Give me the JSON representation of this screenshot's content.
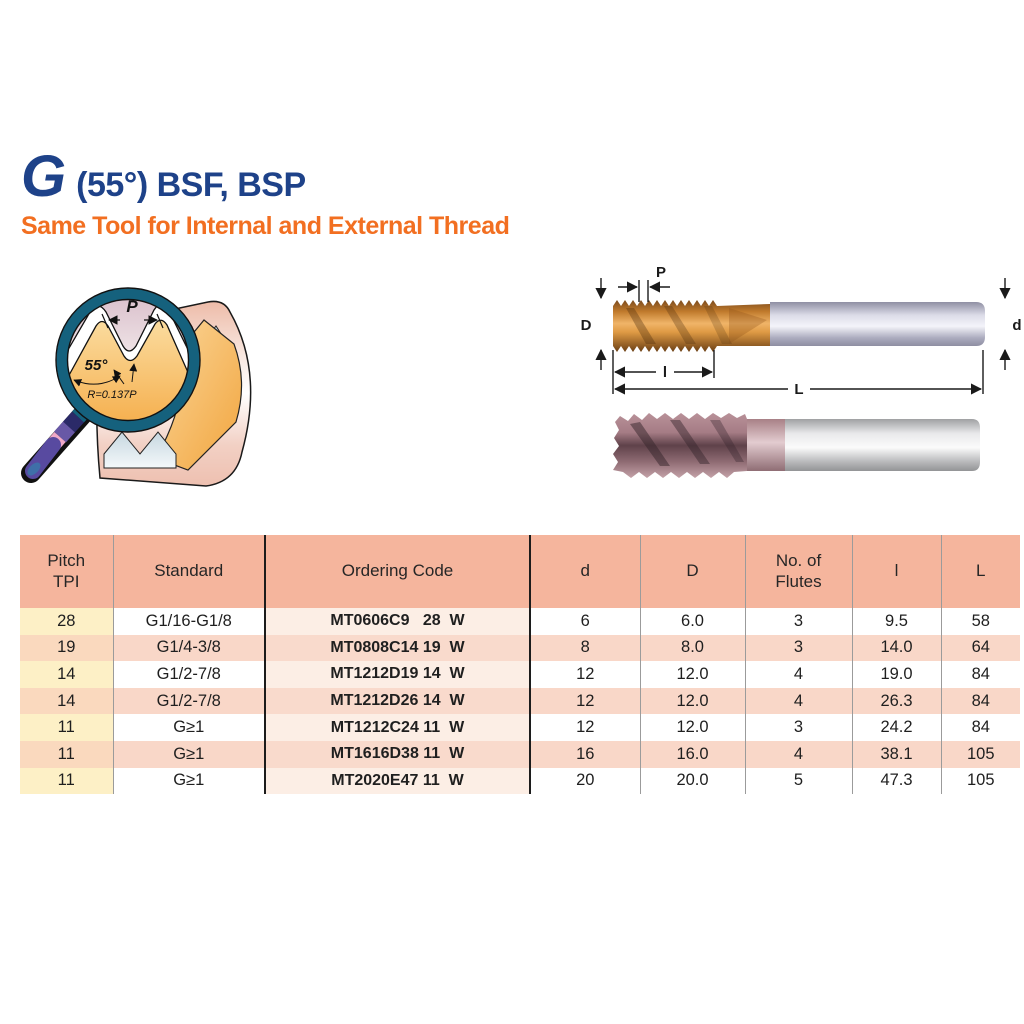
{
  "header": {
    "title_g": "G",
    "title_rest": "(55°) BSF, BSP",
    "subtitle": "Same Tool for Internal and External Thread"
  },
  "magnifier": {
    "pitch_label": "P",
    "angle_label": "55°",
    "radius_label": "R=0.137P"
  },
  "drawing": {
    "pitch_label": "P",
    "left_diameter_label": "D",
    "right_diameter_label": "d",
    "thread_length_label": "l",
    "overall_length_label": "L"
  },
  "table": {
    "headers": [
      {
        "name": "pitch-tpi",
        "lines": [
          "Pitch",
          "TPI"
        ]
      },
      {
        "name": "standard",
        "lines": [
          "Standard"
        ]
      },
      {
        "name": "ordering-code",
        "lines": [
          "Ordering Code"
        ]
      },
      {
        "name": "d-small",
        "lines": [
          "d"
        ]
      },
      {
        "name": "d-big",
        "lines": [
          "D"
        ]
      },
      {
        "name": "no-of-flutes",
        "lines": [
          "No. of",
          "Flutes"
        ]
      },
      {
        "name": "l-small",
        "lines": [
          "l"
        ]
      },
      {
        "name": "l-big",
        "lines": [
          "L"
        ]
      }
    ],
    "rows": [
      [
        "28",
        "G1/16-G1/8",
        "MT0606C9   28  W",
        "6",
        "6.0",
        "3",
        "9.5",
        "58"
      ],
      [
        "19",
        "G1/4-3/8",
        "MT0808C14 19  W",
        "8",
        "8.0",
        "3",
        "14.0",
        "64"
      ],
      [
        "14",
        "G1/2-7/8",
        "MT1212D19 14  W",
        "12",
        "12.0",
        "4",
        "19.0",
        "84"
      ],
      [
        "14",
        "G1/2-7/8",
        "MT1212D26 14  W",
        "12",
        "12.0",
        "4",
        "26.3",
        "84"
      ],
      [
        "11",
        "G≥1",
        "MT1212C24 11  W",
        "12",
        "12.0",
        "3",
        "24.2",
        "84"
      ],
      [
        "11",
        "G≥1",
        "MT1616D38 11  W",
        "16",
        "16.0",
        "4",
        "38.1",
        "105"
      ],
      [
        "11",
        "G≥1",
        "MT2020E47 11  W",
        "20",
        "20.0",
        "5",
        "47.3",
        "105"
      ]
    ]
  },
  "colors": {
    "title_blue": "#1E4289",
    "subtitle_orange": "#F26F21",
    "header_salmon": "#F5B59D",
    "row_pink": "#F9D7C8",
    "pitch_cream": "#FDF0C6",
    "code_text_blue": "#1B4B8E"
  }
}
